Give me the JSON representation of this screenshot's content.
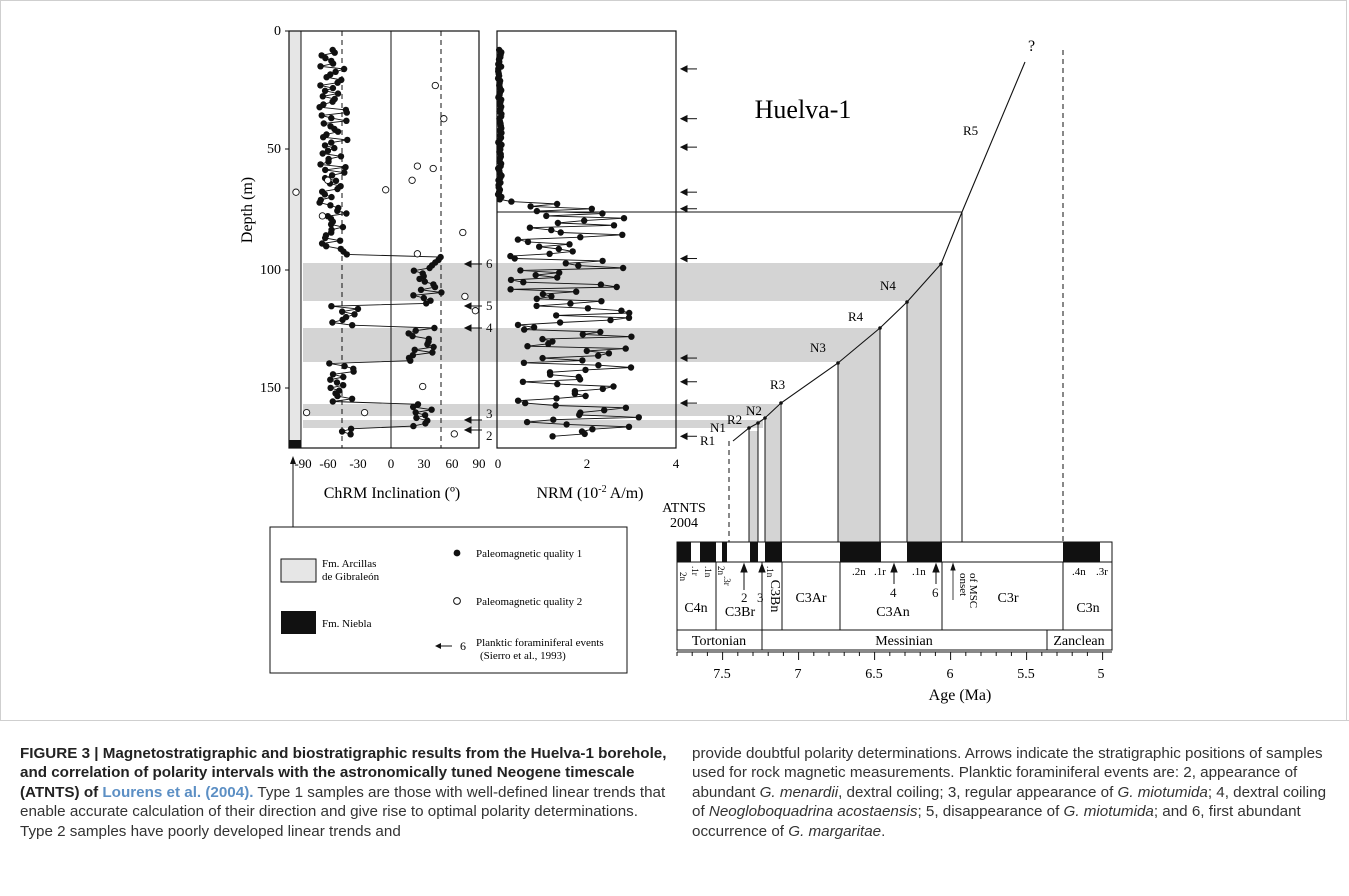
{
  "figure": {
    "title": "Huelva-1",
    "depth_axis": {
      "label": "Depth (m)",
      "ticks": [
        "0",
        "50",
        "100",
        "150"
      ]
    },
    "chrm_axis": {
      "label": "ChRM Inclination (º)",
      "ticks": [
        "-90",
        "-60",
        "-30",
        "0",
        "30",
        "60",
        "90"
      ]
    },
    "nrm_axis": {
      "label": "NRM (10",
      "label_sup": "-2",
      "label_end": " A/m)",
      "ticks": [
        "0",
        "2",
        "4"
      ]
    },
    "event_labels": [
      "6",
      "5",
      "4",
      "3",
      "2"
    ],
    "age_model_labels": [
      "R1",
      "N1",
      "R2",
      "N2",
      "R3",
      "N3",
      "R4",
      "N4",
      "R5",
      "?"
    ],
    "atnts_label_line1": "ATNTS",
    "atnts_label_line2": "2004",
    "chron_sub_labels": [
      "2n",
      ".1r",
      ".1n",
      "2n",
      ".3r",
      ".1n",
      ".2n",
      ".1r",
      ".1n",
      ".4n",
      ".3r"
    ],
    "chron_labels": [
      "C4n",
      "C3Br",
      "C3Bn",
      "C3Ar",
      "C3An",
      "C3r",
      "C3n"
    ],
    "chron_event_nums": [
      "2",
      "3",
      "4",
      "6"
    ],
    "onset_label_line1": "onset",
    "onset_label_line2": "of MSC",
    "stages": [
      "Tortonian",
      "Messinian",
      "Zanclean"
    ],
    "age_axis": {
      "label": "Age (Ma)",
      "ticks": [
        "7.5",
        "7",
        "6.5",
        "6",
        "5.5",
        "5"
      ]
    },
    "legend": {
      "fm1_line1": "Fm. Arcillas",
      "fm1_line2": "de Gibraleón",
      "fm2": "Fm. Niebla",
      "q1": "Paleomagnetic quality 1",
      "q2": "Paleomagnetic quality 2",
      "ev_num": "6",
      "ev_line1": "Planktic foraminiferal events",
      "ev_line2": "(Sierro et al., 1993)"
    },
    "colors": {
      "shade": "#d4d4d4",
      "ink": "#111111"
    }
  },
  "caption": {
    "fig_label": "FIGURE 3 |",
    "title": " Magnetostratigraphic and biostratigraphic results from the Huelva-1 borehole, and correlation of polarity intervals with the astronomically tuned Neogene timescale (ATNTS) of ",
    "citation": "Lourens et al. (2004).",
    "text1": " Type 1 samples are those with well-defined linear trends that enable accurate calculation of their direction and give rise to optimal polarity determinations. Type 2 samples have poorly developed linear trends and",
    "text2a": "provide doubtful polarity determinations. Arrows indicate the stratigraphic positions of samples used for rock magnetic measurements. Planktic foraminiferal events are: 2, appearance of abundant ",
    "sp1": "G. menardii",
    "text2b": ", dextral coiling; 3, regular appearance of ",
    "sp2": "G. miotumida",
    "text2c": "; 4, dextral coiling of ",
    "sp3": "Neogloboquadrina acostaensis",
    "text2d": "; 5, disappearance of ",
    "sp4": "G. miotumida",
    "text2e": "; and 6, first abundant occurrence of ",
    "sp5": "G. margaritae",
    "text2f": "."
  }
}
